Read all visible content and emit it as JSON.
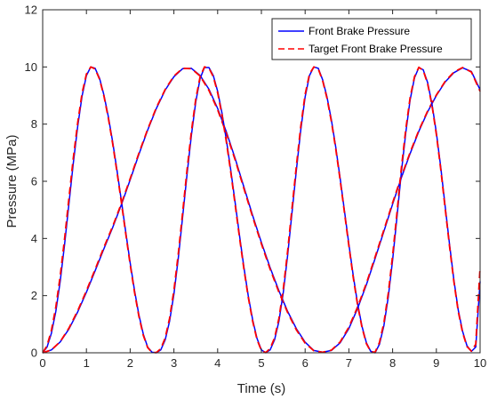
{
  "colors": {
    "actual": "#0000ff",
    "target": "#ff0000",
    "axis": "#262626",
    "background": "#ffffff"
  },
  "chart_data": {
    "type": "line",
    "title": "",
    "xlabel": "Time (s)",
    "ylabel": "Pressure (MPa)",
    "xlim": [
      0,
      10
    ],
    "ylim": [
      0,
      12
    ],
    "xticks": [
      0,
      1,
      2,
      3,
      4,
      5,
      6,
      7,
      8,
      9,
      10
    ],
    "yticks": [
      0,
      2,
      4,
      6,
      8,
      10,
      12
    ],
    "grid": false,
    "legend": {
      "placement": "top-right",
      "entries": [
        {
          "label": "Front Brake Pressure",
          "style": "solid"
        },
        {
          "label": "Target Front Brake Pressure",
          "style": "dashed"
        }
      ]
    },
    "series": [
      {
        "name": "Front Brake Pressure",
        "style": "solid",
        "x": [
          0,
          0.2,
          0.4,
          0.6,
          0.8,
          1.0,
          1.2,
          1.4,
          1.6,
          1.8,
          2.0,
          2.2,
          2.4,
          2.6,
          2.8,
          3.0,
          3.2,
          3.4,
          3.6,
          3.8,
          4.0,
          4.2,
          4.4,
          4.6,
          4.8,
          5.0,
          5.2,
          5.4,
          5.6,
          5.8,
          6.0,
          6.2,
          6.4,
          6.6,
          6.8,
          7.0,
          7.2,
          7.4,
          7.6,
          7.8,
          8.0,
          8.2,
          8.4,
          8.6,
          8.8,
          9.0,
          9.2,
          9.4,
          9.6,
          9.8,
          10.0
        ],
        "y": [
          0.0,
          0.1,
          0.38,
          0.83,
          1.43,
          2.12,
          2.87,
          3.64,
          4.38,
          5.19,
          6.05,
          6.94,
          7.79,
          8.55,
          9.19,
          9.66,
          9.94,
          9.95,
          9.7,
          9.22,
          8.55,
          7.73,
          6.8,
          5.8,
          4.8,
          3.86,
          2.98,
          2.17,
          1.45,
          0.84,
          0.37,
          0.08,
          0.02,
          0.08,
          0.35,
          0.85,
          1.55,
          2.38,
          3.3,
          4.25,
          5.2,
          6.12,
          6.97,
          7.75,
          8.43,
          9.0,
          9.47,
          9.8,
          9.97,
          9.84,
          9.2
        ]
      },
      {
        "name": "Target Front Brake Pressure",
        "style": "dashed",
        "x": [
          0,
          0.2,
          0.4,
          0.6,
          0.8,
          1.0,
          1.2,
          1.4,
          1.6,
          1.8,
          2.0,
          2.2,
          2.4,
          2.6,
          2.8,
          3.0,
          3.2,
          3.4,
          3.6,
          3.8,
          4.0,
          4.2,
          4.4,
          4.6,
          4.8,
          5.0,
          5.2,
          5.4,
          5.6,
          5.8,
          6.0,
          6.2,
          6.4,
          6.6,
          6.8,
          7.0,
          7.2,
          7.4,
          7.6,
          7.8,
          8.0,
          8.2,
          8.4,
          8.6,
          8.8,
          9.0,
          9.2,
          9.4,
          9.6,
          9.8,
          10.0
        ],
        "y": [
          0.0,
          0.1,
          0.39,
          0.86,
          1.47,
          2.17,
          2.92,
          3.69,
          4.42,
          5.23,
          6.09,
          6.98,
          7.82,
          8.58,
          9.21,
          9.68,
          9.95,
          9.94,
          9.68,
          9.18,
          8.5,
          7.68,
          6.75,
          5.75,
          4.75,
          3.81,
          2.93,
          2.12,
          1.41,
          0.8,
          0.34,
          0.07,
          0.02,
          0.09,
          0.38,
          0.9,
          1.6,
          2.43,
          3.35,
          4.3,
          5.25,
          6.16,
          7.01,
          7.78,
          8.46,
          9.02,
          9.49,
          9.82,
          9.98,
          9.82,
          9.15
        ]
      },
      {
        "name": "Front Brake Pressure",
        "style": "solid",
        "x": [
          0,
          0.1,
          0.2,
          0.3,
          0.4,
          0.5,
          0.6,
          0.7,
          0.8,
          0.9,
          1.0,
          1.1,
          1.2,
          1.3,
          1.4,
          1.5,
          1.6,
          1.7,
          1.8,
          1.9,
          2.0,
          2.1,
          2.2,
          2.3,
          2.4,
          2.5,
          2.6,
          2.7,
          2.8,
          2.9,
          3.0,
          3.1,
          3.2,
          3.3,
          3.4,
          3.5,
          3.6,
          3.7,
          3.8,
          3.9,
          4.0,
          4.1,
          4.2,
          4.3,
          4.4,
          4.5,
          4.6,
          4.7,
          4.8,
          4.9,
          5.0,
          5.1,
          5.2,
          5.3,
          5.4,
          5.5,
          5.6,
          5.7,
          5.8,
          5.9,
          6.0,
          6.1,
          6.2,
          6.3,
          6.4,
          6.5,
          6.6,
          6.7,
          6.8,
          6.9,
          7.0,
          7.1,
          7.2,
          7.3,
          7.4,
          7.5,
          7.6,
          7.7,
          7.8,
          7.9,
          8.0,
          8.1,
          8.2,
          8.3,
          8.4,
          8.5,
          8.6,
          8.7,
          8.8,
          8.9,
          9.0,
          9.1,
          9.2,
          9.3,
          9.4,
          9.5,
          9.6,
          9.7,
          9.8,
          9.9,
          10.0
        ],
        "y": [
          0.0,
          0.2,
          0.68,
          1.45,
          2.5,
          3.78,
          5.2,
          6.62,
          7.92,
          8.98,
          9.7,
          10.0,
          9.95,
          9.6,
          9.02,
          8.27,
          7.38,
          6.38,
          5.3,
          4.21,
          3.15,
          2.18,
          1.33,
          0.65,
          0.2,
          0.02,
          0.0,
          0.1,
          0.45,
          1.1,
          2.05,
          3.3,
          4.75,
          6.25,
          7.62,
          8.78,
          9.6,
          9.98,
          9.98,
          9.7,
          9.15,
          8.38,
          7.45,
          6.38,
          5.25,
          4.1,
          3.0,
          2.0,
          1.15,
          0.5,
          0.1,
          0.0,
          0.1,
          0.45,
          1.1,
          2.1,
          3.4,
          4.9,
          6.4,
          7.8,
          8.95,
          9.7,
          10.0,
          9.95,
          9.55,
          8.95,
          8.15,
          7.2,
          6.1,
          4.95,
          3.8,
          2.7,
          1.72,
          0.92,
          0.35,
          0.05,
          0.0,
          0.3,
          0.95,
          1.95,
          3.25,
          4.75,
          6.3,
          7.7,
          8.85,
          9.62,
          9.98,
          9.9,
          9.45,
          8.7,
          7.7,
          6.5,
          5.15,
          3.8,
          2.55,
          1.5,
          0.75,
          0.25,
          0.05,
          0.2,
          2.5
        ]
      },
      {
        "name": "Target Front Brake Pressure",
        "style": "dashed",
        "x": [
          0,
          0.1,
          0.2,
          0.3,
          0.4,
          0.5,
          0.6,
          0.7,
          0.8,
          0.9,
          1.0,
          1.1,
          1.2,
          1.3,
          1.4,
          1.5,
          1.6,
          1.7,
          1.8,
          1.9,
          2.0,
          2.1,
          2.2,
          2.3,
          2.4,
          2.5,
          2.6,
          2.7,
          2.8,
          2.9,
          3.0,
          3.1,
          3.2,
          3.3,
          3.4,
          3.5,
          3.6,
          3.7,
          3.8,
          3.9,
          4.0,
          4.1,
          4.2,
          4.3,
          4.4,
          4.5,
          4.6,
          4.7,
          4.8,
          4.9,
          5.0,
          5.1,
          5.2,
          5.3,
          5.4,
          5.5,
          5.6,
          5.7,
          5.8,
          5.9,
          6.0,
          6.1,
          6.2,
          6.3,
          6.4,
          6.5,
          6.6,
          6.7,
          6.8,
          6.9,
          7.0,
          7.1,
          7.2,
          7.3,
          7.4,
          7.5,
          7.6,
          7.7,
          7.8,
          7.9,
          8.0,
          8.1,
          8.2,
          8.3,
          8.4,
          8.5,
          8.6,
          8.7,
          8.8,
          8.9,
          9.0,
          9.1,
          9.2,
          9.3,
          9.4,
          9.5,
          9.6,
          9.7,
          9.8,
          9.9,
          10.0
        ],
        "y": [
          0.0,
          0.25,
          0.78,
          1.6,
          2.68,
          3.98,
          5.4,
          6.8,
          8.05,
          9.08,
          9.75,
          10.0,
          9.93,
          9.57,
          8.98,
          8.22,
          7.32,
          6.32,
          5.24,
          4.15,
          3.09,
          2.12,
          1.28,
          0.61,
          0.18,
          0.01,
          0.01,
          0.14,
          0.52,
          1.2,
          2.18,
          3.45,
          4.9,
          6.4,
          7.75,
          8.88,
          9.66,
          10.0,
          9.96,
          9.66,
          9.1,
          8.32,
          7.38,
          6.31,
          5.18,
          4.03,
          2.94,
          1.95,
          1.1,
          0.46,
          0.08,
          0.01,
          0.15,
          0.52,
          1.2,
          2.22,
          3.55,
          5.05,
          6.55,
          7.92,
          9.04,
          9.75,
          10.0,
          9.93,
          9.52,
          8.9,
          8.1,
          7.14,
          6.04,
          4.89,
          3.74,
          2.64,
          1.67,
          0.88,
          0.32,
          0.04,
          0.02,
          0.36,
          1.05,
          2.08,
          3.4,
          4.9,
          6.45,
          7.82,
          8.93,
          9.66,
          9.99,
          9.88,
          9.41,
          8.65,
          7.64,
          6.43,
          5.08,
          3.73,
          2.49,
          1.45,
          0.71,
          0.22,
          0.06,
          0.3,
          3.0
        ]
      }
    ]
  }
}
